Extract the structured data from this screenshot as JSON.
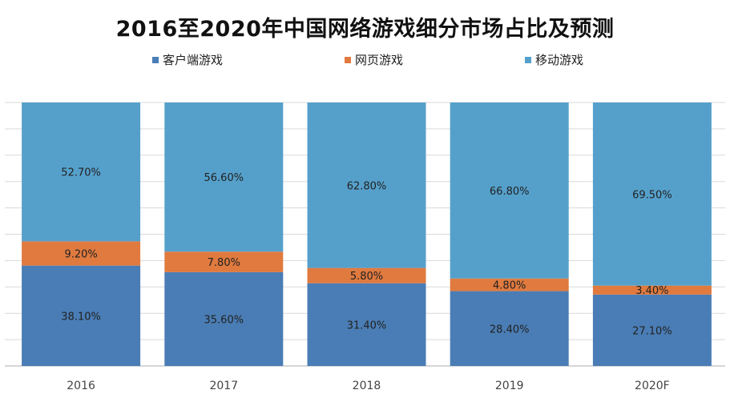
{
  "chart_data": {
    "type": "bar",
    "stacked": true,
    "title": "2016至2020年中国网络游戏细分市场占比及预测",
    "categories": [
      "2016",
      "2017",
      "2018",
      "2019",
      "2020F"
    ],
    "series": [
      {
        "name": "客户端游戏",
        "color": "#4a7db5",
        "values": [
          38.1,
          35.6,
          31.4,
          28.4,
          27.1
        ],
        "labels": [
          "38.10%",
          "35.60%",
          "31.40%",
          "28.40%",
          "27.10%"
        ]
      },
      {
        "name": "网页游戏",
        "color": "#e07a3f",
        "values": [
          9.2,
          7.8,
          5.8,
          4.8,
          3.4
        ],
        "labels": [
          "9.20%",
          "7.80%",
          "5.80%",
          "4.80%",
          "3.40%"
        ]
      },
      {
        "name": "移动游戏",
        "color": "#55a0cb",
        "values": [
          52.7,
          56.6,
          62.8,
          66.8,
          69.5
        ],
        "labels": [
          "52.70%",
          "56.60%",
          "62.80%",
          "66.80%",
          "69.50%"
        ]
      }
    ],
    "ylim": [
      0,
      100
    ],
    "grid": true,
    "legend": "top",
    "xlabel": "",
    "ylabel": ""
  }
}
